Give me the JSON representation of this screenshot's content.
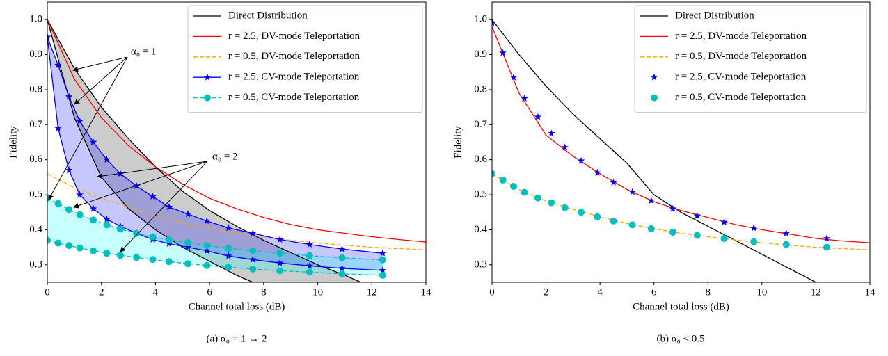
{
  "chart_data": [
    {
      "type": "line",
      "caption": "(a) α₀ = 1 → 2",
      "xlabel": "Channel total loss (dB)",
      "ylabel": "Fidelity",
      "xlim": [
        0,
        14
      ],
      "ylim": [
        0.25,
        1.05
      ],
      "xticks": [
        0,
        2,
        4,
        6,
        8,
        10,
        12,
        14
      ],
      "yticks": [
        0.3,
        0.4,
        0.5,
        0.6,
        0.7,
        0.8,
        0.9,
        {
          "value": 1,
          "label": "1.0"
        }
      ],
      "legend": "upper right",
      "annotations": [
        "α₀ = 1",
        "α₀ = 2"
      ],
      "series": [
        {
          "name": "Direct Distribution",
          "color": "#000000",
          "x": [
            0,
            1,
            2,
            3,
            4,
            5,
            6,
            7,
            8,
            9,
            10,
            11,
            11.6
          ],
          "values": [
            1.0,
            0.86,
            0.75,
            0.66,
            0.58,
            0.51,
            0.455,
            0.41,
            0.37,
            0.335,
            0.3,
            0.27,
            0.25
          ]
        },
        {
          "color": "#000000",
          "fill_color": "#808080",
          "fill_opacity": 0.4,
          "x": [
            0,
            1,
            2,
            3,
            4,
            5,
            6,
            7,
            7.6
          ],
          "values": [
            1.0,
            0.72,
            0.55,
            0.46,
            0.4,
            0.35,
            0.31,
            0.27,
            0.25
          ]
        },
        {
          "name": "r = 2.5, DV-mode Teleportation",
          "color": "#ff0000",
          "x": [
            0,
            1,
            2,
            3,
            4,
            5,
            6,
            7,
            8,
            9,
            10,
            11,
            12,
            13,
            14
          ],
          "values": [
            1.0,
            0.83,
            0.72,
            0.64,
            0.58,
            0.53,
            0.49,
            0.46,
            0.435,
            0.415,
            0.4,
            0.39,
            0.38,
            0.372,
            0.365
          ]
        },
        {
          "name": "r = 0.5, DV-mode Teleportation",
          "color": "#ffa500",
          "dash": true,
          "x": [
            0,
            1,
            2,
            3,
            4,
            5,
            6,
            7,
            8,
            9,
            10,
            11,
            12,
            13,
            14
          ],
          "values": [
            0.56,
            0.52,
            0.49,
            0.465,
            0.44,
            0.42,
            0.405,
            0.39,
            0.38,
            0.37,
            0.362,
            0.356,
            0.35,
            0.346,
            0.343
          ]
        },
        {
          "name": "r = 2.5, CV-mode Teleportation",
          "color": "#0000ff",
          "marker": "star",
          "x": [
            0,
            0.4,
            0.8,
            1.2,
            1.7,
            2.2,
            2.7,
            3.3,
            3.9,
            4.5,
            5.2,
            5.9,
            6.7,
            7.6,
            8.6,
            9.7,
            10.9,
            12.4
          ],
          "values": [
            0.95,
            0.87,
            0.78,
            0.71,
            0.65,
            0.6,
            0.56,
            0.525,
            0.495,
            0.465,
            0.445,
            0.425,
            0.405,
            0.39,
            0.372,
            0.358,
            0.345,
            0.333
          ]
        },
        {
          "color": "#0000ff",
          "marker": "star",
          "fill_color": "#0000ff",
          "fill_opacity": 0.22,
          "x": [
            0,
            0.4,
            0.8,
            1.2,
            1.7,
            2.2,
            2.7,
            3.3,
            3.9,
            4.5,
            5.2,
            5.9,
            6.7,
            7.6,
            8.6,
            9.7,
            10.9,
            12.4
          ],
          "values": [
            0.95,
            0.69,
            0.57,
            0.5,
            0.46,
            0.43,
            0.41,
            0.39,
            0.372,
            0.36,
            0.35,
            0.34,
            0.325,
            0.315,
            0.305,
            0.297,
            0.29,
            0.284
          ]
        },
        {
          "name": "r = 0.5, CV-mode Teleportation",
          "color": "#00bfbf",
          "dash": true,
          "marker": "circle",
          "x": [
            0,
            0.4,
            0.8,
            1.2,
            1.7,
            2.2,
            2.7,
            3.3,
            3.9,
            4.5,
            5.2,
            5.9,
            6.7,
            7.6,
            8.6,
            9.7,
            10.9,
            12.4
          ],
          "values": [
            0.49,
            0.475,
            0.458,
            0.443,
            0.428,
            0.414,
            0.402,
            0.39,
            0.38,
            0.371,
            0.363,
            0.355,
            0.347,
            0.34,
            0.333,
            0.326,
            0.32,
            0.314
          ]
        },
        {
          "color": "#00bfbf",
          "dash": true,
          "marker": "circle",
          "fill_color": "#00ffff",
          "fill_opacity": 0.22,
          "x": [
            0,
            0.4,
            0.8,
            1.2,
            1.7,
            2.2,
            2.7,
            3.3,
            3.9,
            4.5,
            5.2,
            5.9,
            6.7,
            7.6,
            8.6,
            9.7,
            10.9,
            12.4
          ],
          "values": [
            0.37,
            0.362,
            0.355,
            0.348,
            0.34,
            0.333,
            0.327,
            0.321,
            0.315,
            0.309,
            0.303,
            0.298,
            0.293,
            0.288,
            0.283,
            0.279,
            0.274,
            0.27
          ]
        }
      ]
    },
    {
      "type": "line",
      "caption": "(b) α₀ < 0.5",
      "xlabel": "Channel total loss (dB)",
      "ylabel": "Fidelity",
      "xlim": [
        0,
        14
      ],
      "ylim": [
        0.25,
        1.05
      ],
      "xticks": [
        0,
        2,
        4,
        6,
        8,
        10,
        12,
        14
      ],
      "yticks": [
        0.3,
        0.4,
        0.5,
        0.6,
        0.7,
        0.8,
        0.9,
        {
          "value": 1,
          "label": "1.0"
        }
      ],
      "legend": "upper right",
      "series": [
        {
          "name": "Direct Distribution",
          "color": "#000000",
          "x": [
            0,
            1,
            2,
            3,
            4,
            5,
            6,
            7,
            8,
            9,
            10,
            11,
            12
          ],
          "values": [
            1.0,
            0.9,
            0.81,
            0.73,
            0.66,
            0.59,
            0.5,
            0.45,
            0.41,
            0.37,
            0.33,
            0.29,
            0.25
          ]
        },
        {
          "name": "r = 2.5, DV-mode Teleportation",
          "color": "#ff0000",
          "x": [
            0,
            1,
            2,
            3,
            4,
            5,
            6,
            7,
            8,
            9,
            10,
            11,
            12,
            13,
            14
          ],
          "values": [
            0.98,
            0.79,
            0.67,
            0.61,
            0.56,
            0.515,
            0.48,
            0.455,
            0.435,
            0.415,
            0.4,
            0.388,
            0.375,
            0.368,
            0.363
          ]
        },
        {
          "name": "r = 0.5, DV-mode Teleportation",
          "color": "#ffa500",
          "dash": true,
          "x": [
            0,
            1,
            2,
            3,
            4,
            5,
            6,
            7,
            8,
            9,
            10,
            11,
            12,
            13,
            14
          ],
          "values": [
            0.56,
            0.515,
            0.482,
            0.458,
            0.437,
            0.418,
            0.403,
            0.39,
            0.38,
            0.371,
            0.363,
            0.356,
            0.35,
            0.346,
            0.343
          ]
        },
        {
          "name": "r = 2.5, CV-mode Teleportation",
          "color": "#0000ff",
          "marker": "star",
          "line": false,
          "x": [
            0,
            0.4,
            0.8,
            1.2,
            1.7,
            2.2,
            2.7,
            3.3,
            3.9,
            4.5,
            5.2,
            5.9,
            6.7,
            7.6,
            8.6,
            9.7,
            10.9,
            12.4
          ],
          "values": [
            0.99,
            0.905,
            0.835,
            0.775,
            0.722,
            0.675,
            0.635,
            0.597,
            0.563,
            0.535,
            0.508,
            0.483,
            0.46,
            0.44,
            0.422,
            0.405,
            0.39,
            0.375
          ]
        },
        {
          "name": "r = 0.5, CV-mode Teleportation",
          "color": "#00bfbf",
          "marker": "circle",
          "line": false,
          "x": [
            0,
            0.4,
            0.8,
            1.2,
            1.7,
            2.2,
            2.7,
            3.3,
            3.9,
            4.5,
            5.2,
            5.9,
            6.7,
            7.6,
            8.6,
            9.7,
            10.9,
            12.4
          ],
          "values": [
            0.56,
            0.542,
            0.524,
            0.507,
            0.491,
            0.477,
            0.463,
            0.45,
            0.437,
            0.425,
            0.414,
            0.403,
            0.393,
            0.384,
            0.375,
            0.366,
            0.358,
            0.35
          ]
        }
      ]
    }
  ]
}
